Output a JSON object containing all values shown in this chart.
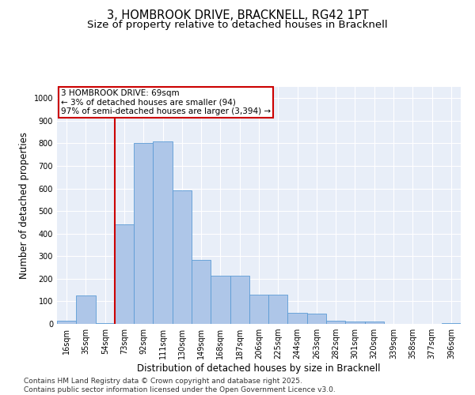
{
  "title1": "3, HOMBROOK DRIVE, BRACKNELL, RG42 1PT",
  "title2": "Size of property relative to detached houses in Bracknell",
  "xlabel": "Distribution of detached houses by size in Bracknell",
  "ylabel": "Number of detached properties",
  "categories": [
    "16sqm",
    "35sqm",
    "54sqm",
    "73sqm",
    "92sqm",
    "111sqm",
    "130sqm",
    "149sqm",
    "168sqm",
    "187sqm",
    "206sqm",
    "225sqm",
    "244sqm",
    "263sqm",
    "282sqm",
    "301sqm",
    "320sqm",
    "339sqm",
    "358sqm",
    "377sqm",
    "396sqm"
  ],
  "values": [
    15,
    125,
    5,
    440,
    800,
    810,
    590,
    285,
    215,
    215,
    130,
    130,
    50,
    45,
    15,
    10,
    10,
    0,
    0,
    0,
    5
  ],
  "bar_color": "#aec6e8",
  "bar_edge_color": "#5b9bd5",
  "property_line_color": "#cc0000",
  "annotation_text": "3 HOMBROOK DRIVE: 69sqm\n← 3% of detached houses are smaller (94)\n97% of semi-detached houses are larger (3,394) →",
  "annotation_box_color": "#cc0000",
  "ylim": [
    0,
    1050
  ],
  "yticks": [
    0,
    100,
    200,
    300,
    400,
    500,
    600,
    700,
    800,
    900,
    1000
  ],
  "bg_color": "#e8eef8",
  "footer": "Contains HM Land Registry data © Crown copyright and database right 2025.\nContains public sector information licensed under the Open Government Licence v3.0.",
  "title_fontsize": 10.5,
  "subtitle_fontsize": 9.5,
  "axis_label_fontsize": 8.5,
  "tick_fontsize": 7,
  "annotation_fontsize": 7.5,
  "footer_fontsize": 6.5
}
